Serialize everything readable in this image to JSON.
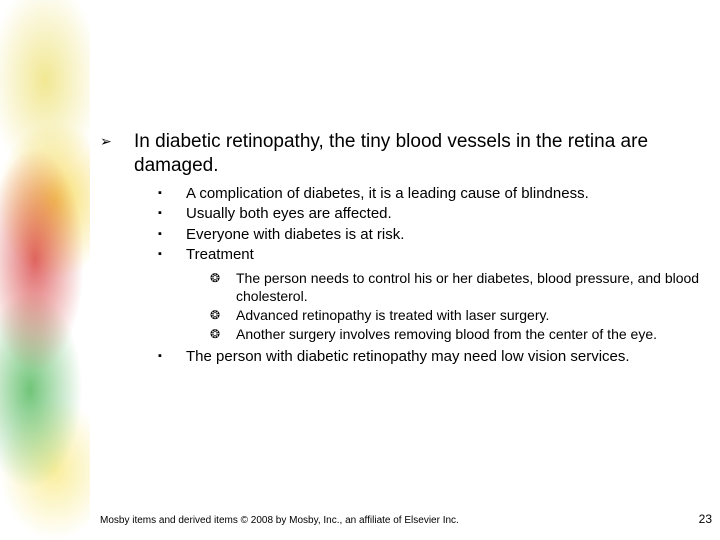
{
  "bullets": {
    "lvl1": "➢",
    "lvl2": "▪",
    "lvl3": "❂"
  },
  "main": {
    "point": "In diabetic retinopathy, the tiny blood vessels in the retina are damaged.",
    "subs": [
      {
        "text": "A complication of diabetes, it is a leading cause of blindness."
      },
      {
        "text": "Usually both eyes are affected."
      },
      {
        "text": "Everyone with diabetes is at risk."
      },
      {
        "text": "Treatment"
      }
    ],
    "treatment_items": [
      "The person needs to control his or her diabetes, blood pressure, and blood cholesterol.",
      "Advanced retinopathy is treated with laser surgery.",
      "Another surgery involves removing blood from the center of the eye."
    ],
    "after": [
      {
        "text": "The person with diabetic retinopathy may need low vision services."
      }
    ]
  },
  "footer": "Mosby items and derived items © 2008 by Mosby, Inc., an affiliate of Elsevier Inc.",
  "page_number": "23"
}
